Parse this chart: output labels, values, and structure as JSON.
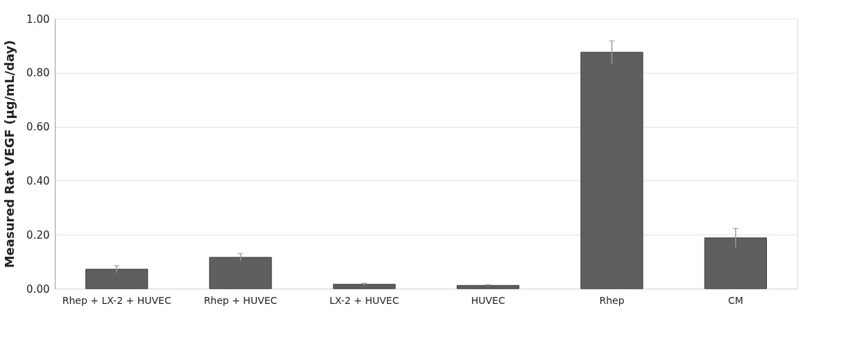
{
  "chart_data": {
    "type": "bar",
    "ylabel": "Measured Rat VEGF (µg/mL/day)",
    "categories": [
      "Rhep + LX-2 + HUVEC",
      "Rhep + HUVEC",
      "LX-2 + HUVEC",
      "HUVEC",
      "Rhep",
      "CM"
    ],
    "values": [
      0.072,
      0.116,
      0.016,
      0.012,
      0.876,
      0.188
    ],
    "errors": [
      0.013,
      0.014,
      0.004,
      0.003,
      0.042,
      0.035
    ],
    "color": "#5f5f5f",
    "ylim": [
      0,
      1
    ],
    "yticks": [
      {
        "value": 0,
        "label": "0.00"
      },
      {
        "value": 0.2,
        "label": "0.20"
      },
      {
        "value": 0.4,
        "label": "0.40"
      },
      {
        "value": 0.6,
        "label": "0.60"
      },
      {
        "value": 0.8,
        "label": "0.80"
      },
      {
        "value": 1,
        "label": "1.00"
      }
    ],
    "grid": "y"
  }
}
